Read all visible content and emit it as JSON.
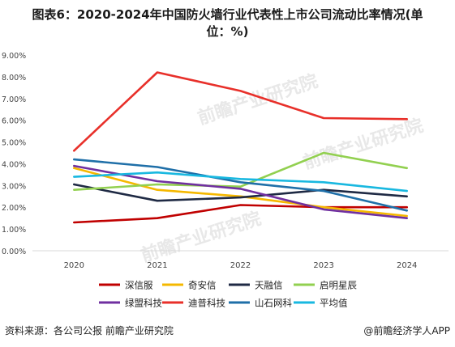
{
  "title_line1": "图表6：2020-2024年中国防火墙行业代表性上市公司流动比率情况(单",
  "title_line2": "位：%)",
  "watermark": "前瞻产业研究院",
  "footer_left": "资料来源：各公司公报 前瞻产业研究院",
  "footer_right": "@前瞻经济学人APP",
  "chart_data": {
    "type": "line",
    "x": [
      "2020",
      "2021",
      "2022",
      "2023",
      "2024"
    ],
    "ylim": [
      0,
      9
    ],
    "yticks": [
      "0.00%",
      "1.00%",
      "2.00%",
      "3.00%",
      "4.00%",
      "5.00%",
      "6.00%",
      "7.00%",
      "8.00%",
      "9.00%"
    ],
    "grid": false,
    "legend_position": "bottom",
    "series": [
      {
        "name": "深信服",
        "color": "#c00000",
        "values": [
          1.3,
          1.5,
          2.1,
          2.0,
          2.0
        ]
      },
      {
        "name": "奇安信",
        "color": "#f5b800",
        "values": [
          3.8,
          2.8,
          2.5,
          2.0,
          1.6
        ]
      },
      {
        "name": "天融信",
        "color": "#1f2a44",
        "values": [
          3.05,
          2.3,
          2.45,
          2.8,
          2.5
        ]
      },
      {
        "name": "启明星辰",
        "color": "#92d050",
        "values": [
          2.8,
          3.05,
          2.95,
          4.5,
          3.8
        ]
      },
      {
        "name": "绿盟科技",
        "color": "#7030a0",
        "values": [
          3.9,
          3.2,
          2.85,
          1.9,
          1.5
        ]
      },
      {
        "name": "迪普科技",
        "color": "#e8302a",
        "values": [
          4.6,
          8.2,
          7.35,
          6.1,
          6.05
        ]
      },
      {
        "name": "山石网科",
        "color": "#1f6fa8",
        "values": [
          4.2,
          3.85,
          3.15,
          2.75,
          1.85
        ]
      },
      {
        "name": "平均值",
        "color": "#19b8e0",
        "values": [
          3.4,
          3.6,
          3.3,
          3.15,
          2.75
        ]
      }
    ]
  }
}
